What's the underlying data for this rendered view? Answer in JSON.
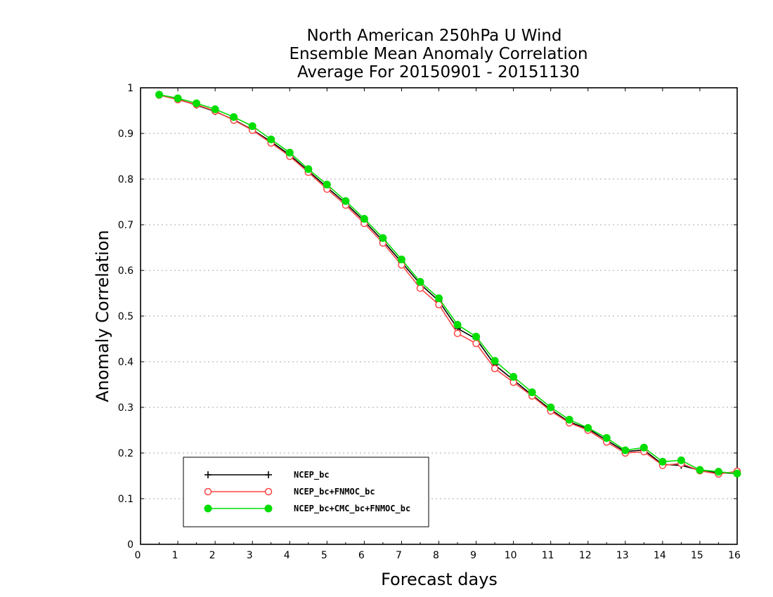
{
  "chart_data": {
    "type": "line",
    "title": [
      "North American 250hPa U Wind",
      "Ensemble Mean Anomaly Correlation",
      "Average For 20150901 - 20151130"
    ],
    "xlabel": "Forecast days",
    "ylabel": "Anomaly Correlation",
    "xlim": [
      0,
      16
    ],
    "ylim": [
      0,
      1
    ],
    "xticks": [
      "0",
      "1",
      "2",
      "3",
      "4",
      "5",
      "6",
      "7",
      "8",
      "9",
      "10",
      "11",
      "12",
      "13",
      "14",
      "15",
      "16"
    ],
    "yticks": [
      "0",
      "0.1",
      "0.2",
      "0.3",
      "0.4",
      "0.5",
      "0.6",
      "0.7",
      "0.8",
      "0.9",
      "1"
    ],
    "grid": "dotted horizontal",
    "legend_position": "bottom-left",
    "x": [
      0.5,
      1,
      1.5,
      2,
      2.5,
      3,
      3.5,
      4,
      4.5,
      5,
      5.5,
      6,
      6.5,
      7,
      7.5,
      8,
      8.5,
      9,
      9.5,
      10,
      10.5,
      11,
      11.5,
      12,
      12.5,
      13,
      13.5,
      14,
      14.5,
      15,
      15.5,
      16
    ],
    "series": [
      {
        "name": "NCEP_bc",
        "color": "#000000",
        "marker": "plus",
        "values": [
          0.984,
          0.975,
          0.962,
          0.948,
          0.93,
          0.908,
          0.882,
          0.853,
          0.818,
          0.782,
          0.747,
          0.708,
          0.665,
          0.618,
          0.57,
          0.533,
          0.473,
          0.45,
          0.393,
          0.36,
          0.327,
          0.295,
          0.268,
          0.253,
          0.228,
          0.203,
          0.207,
          0.175,
          0.173,
          0.162,
          0.157,
          0.155
        ]
      },
      {
        "name": "NCEP_bc+FNMOC_bc",
        "color": "#ff4444",
        "marker": "open-circle",
        "values": [
          0.984,
          0.974,
          0.963,
          0.949,
          0.929,
          0.907,
          0.879,
          0.85,
          0.815,
          0.778,
          0.743,
          0.703,
          0.66,
          0.612,
          0.561,
          0.525,
          0.462,
          0.44,
          0.385,
          0.355,
          0.325,
          0.292,
          0.266,
          0.25,
          0.224,
          0.2,
          0.203,
          0.173,
          0.177,
          0.161,
          0.154,
          0.16
        ]
      },
      {
        "name": "NCEP_bc+CMC_bc+FNMOC_bc",
        "color": "#00dd00",
        "marker": "filled-circle",
        "values": [
          0.985,
          0.977,
          0.966,
          0.953,
          0.936,
          0.916,
          0.887,
          0.858,
          0.822,
          0.788,
          0.752,
          0.713,
          0.671,
          0.624,
          0.575,
          0.539,
          0.481,
          0.455,
          0.402,
          0.367,
          0.333,
          0.3,
          0.273,
          0.255,
          0.233,
          0.206,
          0.212,
          0.181,
          0.184,
          0.163,
          0.159,
          0.155
        ]
      }
    ]
  }
}
